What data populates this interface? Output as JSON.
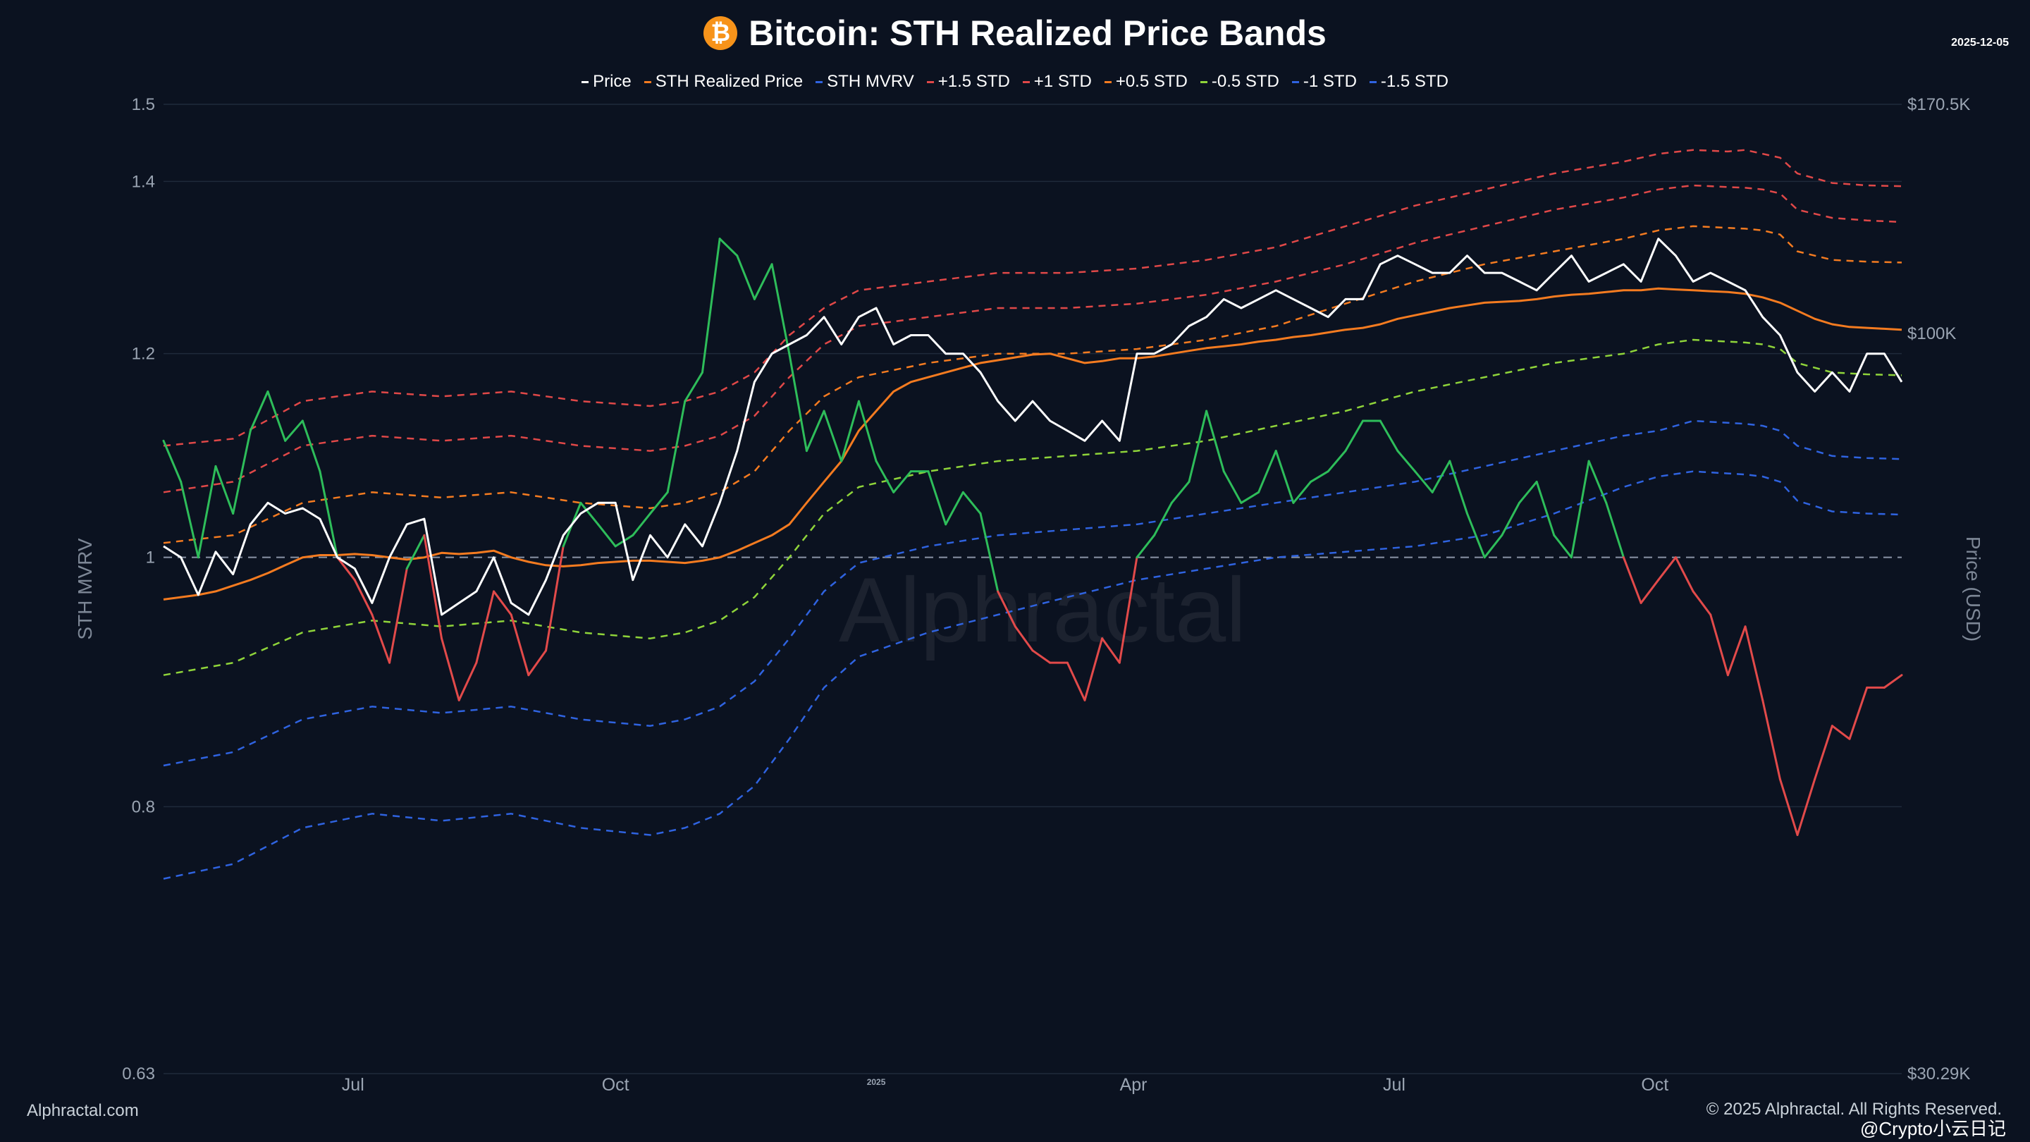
{
  "title": "Bitcoin: STH Realized Price Bands",
  "date_label": "2025-12-05",
  "brand": "Alphractal.com",
  "watermark_text": "Alphractal",
  "copyright": "© 2025 Alphractal. All Rights Reserved.",
  "social_watermark": "@Crypto小云日记",
  "colors": {
    "background": "#0b1220",
    "price": "#ffffff",
    "sth_realized": "#f47b20",
    "mvrv_above": "#2ebd5a",
    "mvrv_below": "#e24a4a",
    "plus15": "#e04848",
    "plus1": "#e04848",
    "plus05": "#f47b20",
    "minus05": "#8fd43a",
    "minus1": "#2f63e0",
    "minus15": "#2f63e0"
  },
  "chart_data": {
    "type": "line",
    "title": "Bitcoin: STH Realized Price Bands",
    "x_axis_ticks": [
      {
        "label": "Jul",
        "t": 0.109
      },
      {
        "label": "Oct",
        "t": 0.26
      },
      {
        "label": "2025",
        "t": 0.41
      },
      {
        "label": "Apr",
        "t": 0.558
      },
      {
        "label": "Jul",
        "t": 0.708
      },
      {
        "label": "Oct",
        "t": 0.858
      }
    ],
    "y_left": {
      "label": "STH MVRV",
      "scale": "log",
      "range": [
        0.63,
        1.5
      ],
      "ticks": [
        "1.5",
        "1.4",
        "1.2",
        "1",
        "0.8",
        "0.63"
      ]
    },
    "y_right": {
      "label": "Price (USD)",
      "ticks": [
        {
          "label": "$170.5K",
          "mvrv": 1.5
        },
        {
          "label": "$100K",
          "mvrv": 1.222
        },
        {
          "label": "$30.29K",
          "mvrv": 0.63
        }
      ]
    },
    "baseline_mvrv": 1.0,
    "legend": [
      "Price",
      "STH Realized Price",
      "STH MVRV",
      "+1.5 STD",
      "+1 STD",
      "+0.5 STD",
      "-0.5 STD",
      "-1 STD",
      "-1.5 STD"
    ],
    "series": [
      {
        "name": "Price",
        "t": [
          0,
          0.01,
          0.02,
          0.03,
          0.04,
          0.05,
          0.06,
          0.07,
          0.08,
          0.09,
          0.1,
          0.11,
          0.12,
          0.13,
          0.14,
          0.15,
          0.16,
          0.17,
          0.18,
          0.19,
          0.2,
          0.21,
          0.22,
          0.23,
          0.24,
          0.25,
          0.26,
          0.27,
          0.28,
          0.29,
          0.3,
          0.31,
          0.32,
          0.33,
          0.34,
          0.35,
          0.36,
          0.37,
          0.38,
          0.39,
          0.4,
          0.41,
          0.42,
          0.43,
          0.44,
          0.45,
          0.46,
          0.47,
          0.48,
          0.49,
          0.5,
          0.51,
          0.52,
          0.53,
          0.54,
          0.55,
          0.56,
          0.57,
          0.58,
          0.59,
          0.6,
          0.61,
          0.62,
          0.63,
          0.64,
          0.65,
          0.66,
          0.67,
          0.68,
          0.69,
          0.7,
          0.71,
          0.72,
          0.73,
          0.74,
          0.75,
          0.76,
          0.77,
          0.78,
          0.79,
          0.8,
          0.81,
          0.82,
          0.83,
          0.84,
          0.85,
          0.86,
          0.87,
          0.88,
          0.89,
          0.9,
          0.91,
          0.92,
          0.93,
          0.94,
          0.95,
          0.96,
          0.97,
          0.98,
          0.99,
          1.0
        ],
        "mvrv": [
          1.01,
          1.0,
          0.967,
          1.005,
          0.985,
          1.03,
          1.05,
          1.04,
          1.045,
          1.035,
          1.0,
          0.99,
          0.96,
          1.0,
          1.03,
          1.035,
          0.95,
          0.96,
          0.97,
          1.0,
          0.96,
          0.95,
          0.98,
          1.02,
          1.04,
          1.05,
          1.05,
          0.98,
          1.02,
          1.0,
          1.03,
          1.01,
          1.05,
          1.1,
          1.17,
          1.2,
          1.21,
          1.22,
          1.24,
          1.21,
          1.24,
          1.25,
          1.21,
          1.22,
          1.22,
          1.2,
          1.2,
          1.18,
          1.15,
          1.13,
          1.15,
          1.13,
          1.12,
          1.11,
          1.13,
          1.11,
          1.2,
          1.2,
          1.21,
          1.23,
          1.24,
          1.26,
          1.25,
          1.26,
          1.27,
          1.26,
          1.25,
          1.24,
          1.26,
          1.26,
          1.3,
          1.31,
          1.3,
          1.29,
          1.29,
          1.31,
          1.29,
          1.29,
          1.28,
          1.27,
          1.29,
          1.31,
          1.28,
          1.29,
          1.3,
          1.28,
          1.33,
          1.31,
          1.28,
          1.29,
          1.28,
          1.27,
          1.24,
          1.22,
          1.18,
          1.16,
          1.18,
          1.16,
          1.2,
          1.2,
          1.17
        ]
      },
      {
        "name": "STH Realized Price",
        "t": [
          0,
          0.01,
          0.02,
          0.03,
          0.04,
          0.05,
          0.06,
          0.07,
          0.08,
          0.09,
          0.1,
          0.11,
          0.12,
          0.13,
          0.14,
          0.15,
          0.16,
          0.17,
          0.18,
          0.19,
          0.2,
          0.21,
          0.22,
          0.23,
          0.24,
          0.25,
          0.26,
          0.27,
          0.28,
          0.29,
          0.3,
          0.31,
          0.32,
          0.33,
          0.34,
          0.35,
          0.36,
          0.37,
          0.38,
          0.39,
          0.4,
          0.41,
          0.42,
          0.43,
          0.44,
          0.45,
          0.46,
          0.47,
          0.48,
          0.49,
          0.5,
          0.51,
          0.52,
          0.53,
          0.54,
          0.55,
          0.56,
          0.57,
          0.58,
          0.59,
          0.6,
          0.61,
          0.62,
          0.63,
          0.64,
          0.65,
          0.66,
          0.67,
          0.68,
          0.69,
          0.7,
          0.71,
          0.72,
          0.73,
          0.74,
          0.75,
          0.76,
          0.77,
          0.78,
          0.79,
          0.8,
          0.81,
          0.82,
          0.83,
          0.84,
          0.85,
          0.86,
          0.87,
          0.88,
          0.89,
          0.9,
          0.91,
          0.92,
          0.93,
          0.94,
          0.95,
          0.96,
          0.97,
          0.98,
          0.99,
          1.0
        ],
        "mvrv": [
          0.963,
          0.965,
          0.967,
          0.97,
          0.975,
          0.98,
          0.986,
          0.993,
          1.0,
          1.002,
          1.002,
          1.003,
          1.002,
          1.0,
          0.998,
          1.0,
          1.004,
          1.003,
          1.004,
          1.006,
          1.0,
          0.996,
          0.993,
          0.992,
          0.993,
          0.995,
          0.996,
          0.997,
          0.997,
          0.996,
          0.995,
          0.997,
          1.0,
          1.006,
          1.013,
          1.02,
          1.03,
          1.05,
          1.07,
          1.09,
          1.12,
          1.14,
          1.16,
          1.17,
          1.175,
          1.18,
          1.185,
          1.19,
          1.193,
          1.196,
          1.199,
          1.2,
          1.195,
          1.19,
          1.192,
          1.195,
          1.195,
          1.197,
          1.2,
          1.203,
          1.206,
          1.208,
          1.21,
          1.213,
          1.215,
          1.218,
          1.22,
          1.223,
          1.226,
          1.228,
          1.232,
          1.238,
          1.242,
          1.246,
          1.25,
          1.253,
          1.256,
          1.257,
          1.258,
          1.26,
          1.263,
          1.265,
          1.266,
          1.268,
          1.27,
          1.27,
          1.272,
          1.271,
          1.27,
          1.269,
          1.268,
          1.266,
          1.262,
          1.256,
          1.247,
          1.238,
          1.232,
          1.229,
          1.228,
          1.227,
          1.226
        ]
      },
      {
        "name": "STH MVRV",
        "t": [
          0,
          0.01,
          0.02,
          0.03,
          0.04,
          0.05,
          0.06,
          0.07,
          0.08,
          0.09,
          0.1,
          0.11,
          0.12,
          0.13,
          0.14,
          0.15,
          0.16,
          0.17,
          0.18,
          0.19,
          0.2,
          0.21,
          0.22,
          0.23,
          0.24,
          0.25,
          0.26,
          0.27,
          0.28,
          0.29,
          0.3,
          0.31,
          0.32,
          0.33,
          0.34,
          0.35,
          0.36,
          0.37,
          0.38,
          0.39,
          0.4,
          0.41,
          0.42,
          0.43,
          0.44,
          0.45,
          0.46,
          0.47,
          0.48,
          0.49,
          0.5,
          0.51,
          0.52,
          0.53,
          0.54,
          0.55,
          0.56,
          0.57,
          0.58,
          0.59,
          0.6,
          0.61,
          0.62,
          0.63,
          0.64,
          0.65,
          0.66,
          0.67,
          0.68,
          0.69,
          0.7,
          0.71,
          0.72,
          0.73,
          0.74,
          0.75,
          0.76,
          0.77,
          0.78,
          0.79,
          0.8,
          0.81,
          0.82,
          0.83,
          0.84,
          0.85,
          0.86,
          0.87,
          0.88,
          0.89,
          0.9,
          0.91,
          0.92,
          0.93,
          0.94,
          0.95,
          0.96,
          0.97,
          0.98,
          0.99,
          1.0
        ],
        "mvrv": [
          1.11,
          1.07,
          1.0,
          1.085,
          1.04,
          1.12,
          1.16,
          1.11,
          1.13,
          1.08,
          1.0,
          0.98,
          0.95,
          0.91,
          0.99,
          1.02,
          0.93,
          0.88,
          0.91,
          0.97,
          0.95,
          0.9,
          0.92,
          1.01,
          1.05,
          1.03,
          1.01,
          1.02,
          1.04,
          1.06,
          1.15,
          1.18,
          1.33,
          1.31,
          1.26,
          1.3,
          1.2,
          1.1,
          1.14,
          1.09,
          1.15,
          1.09,
          1.06,
          1.08,
          1.08,
          1.03,
          1.06,
          1.04,
          0.97,
          0.94,
          0.92,
          0.91,
          0.91,
          0.88,
          0.93,
          0.91,
          1.0,
          1.02,
          1.05,
          1.07,
          1.14,
          1.08,
          1.05,
          1.06,
          1.1,
          1.05,
          1.07,
          1.08,
          1.1,
          1.13,
          1.13,
          1.1,
          1.08,
          1.06,
          1.09,
          1.04,
          1.0,
          1.02,
          1.05,
          1.07,
          1.02,
          1.0,
          1.09,
          1.05,
          1.0,
          0.96,
          0.98,
          1.0,
          0.97,
          0.95,
          0.9,
          0.94,
          0.88,
          0.82,
          0.78,
          0.82,
          0.86,
          0.85,
          0.89,
          0.89,
          0.9
        ]
      },
      {
        "name": "+1.5 STD",
        "t": [
          0,
          0.04,
          0.08,
          0.12,
          0.16,
          0.2,
          0.24,
          0.28,
          0.3,
          0.32,
          0.34,
          0.36,
          0.38,
          0.4,
          0.44,
          0.48,
          0.52,
          0.56,
          0.6,
          0.64,
          0.68,
          0.72,
          0.76,
          0.8,
          0.84,
          0.86,
          0.88,
          0.9,
          0.91,
          0.92,
          0.93,
          0.94,
          0.96,
          0.98,
          1.0
        ],
        "mvrv": [
          1.105,
          1.112,
          1.15,
          1.16,
          1.155,
          1.16,
          1.15,
          1.145,
          1.15,
          1.16,
          1.18,
          1.22,
          1.25,
          1.27,
          1.28,
          1.29,
          1.29,
          1.295,
          1.305,
          1.32,
          1.345,
          1.37,
          1.39,
          1.41,
          1.425,
          1.435,
          1.44,
          1.438,
          1.44,
          1.435,
          1.43,
          1.41,
          1.398,
          1.395,
          1.394
        ]
      },
      {
        "name": "+1 STD",
        "t": [
          0,
          0.04,
          0.08,
          0.12,
          0.16,
          0.2,
          0.24,
          0.28,
          0.3,
          0.32,
          0.34,
          0.36,
          0.38,
          0.4,
          0.44,
          0.48,
          0.52,
          0.56,
          0.6,
          0.64,
          0.68,
          0.72,
          0.76,
          0.8,
          0.84,
          0.86,
          0.88,
          0.9,
          0.91,
          0.92,
          0.93,
          0.94,
          0.96,
          0.98,
          1.0
        ],
        "mvrv": [
          1.06,
          1.07,
          1.105,
          1.115,
          1.11,
          1.115,
          1.105,
          1.1,
          1.105,
          1.115,
          1.135,
          1.175,
          1.21,
          1.23,
          1.24,
          1.25,
          1.25,
          1.255,
          1.265,
          1.28,
          1.3,
          1.325,
          1.345,
          1.365,
          1.38,
          1.39,
          1.395,
          1.393,
          1.392,
          1.39,
          1.385,
          1.365,
          1.355,
          1.352,
          1.35
        ]
      },
      {
        "name": "+0.5 STD",
        "t": [
          0,
          0.04,
          0.08,
          0.12,
          0.16,
          0.2,
          0.24,
          0.28,
          0.3,
          0.32,
          0.34,
          0.36,
          0.38,
          0.4,
          0.44,
          0.48,
          0.52,
          0.56,
          0.6,
          0.64,
          0.68,
          0.72,
          0.76,
          0.8,
          0.84,
          0.86,
          0.88,
          0.9,
          0.91,
          0.92,
          0.93,
          0.94,
          0.96,
          0.98,
          1.0
        ],
        "mvrv": [
          1.013,
          1.02,
          1.05,
          1.06,
          1.055,
          1.06,
          1.05,
          1.045,
          1.05,
          1.06,
          1.08,
          1.12,
          1.155,
          1.175,
          1.19,
          1.2,
          1.2,
          1.205,
          1.215,
          1.23,
          1.255,
          1.28,
          1.3,
          1.315,
          1.33,
          1.34,
          1.345,
          1.343,
          1.342,
          1.34,
          1.335,
          1.315,
          1.305,
          1.303,
          1.302
        ]
      },
      {
        "name": "-0.5 STD",
        "t": [
          0,
          0.04,
          0.08,
          0.12,
          0.16,
          0.2,
          0.24,
          0.28,
          0.3,
          0.32,
          0.34,
          0.36,
          0.38,
          0.4,
          0.44,
          0.48,
          0.52,
          0.56,
          0.6,
          0.64,
          0.68,
          0.72,
          0.76,
          0.8,
          0.84,
          0.86,
          0.88,
          0.9,
          0.91,
          0.92,
          0.93,
          0.94,
          0.96,
          0.98,
          1.0
        ],
        "mvrv": [
          0.9,
          0.91,
          0.935,
          0.945,
          0.94,
          0.945,
          0.935,
          0.93,
          0.935,
          0.945,
          0.965,
          1.0,
          1.04,
          1.065,
          1.08,
          1.09,
          1.095,
          1.1,
          1.11,
          1.125,
          1.14,
          1.16,
          1.175,
          1.19,
          1.2,
          1.21,
          1.215,
          1.213,
          1.212,
          1.21,
          1.205,
          1.19,
          1.18,
          1.178,
          1.177
        ]
      },
      {
        "name": "-1 STD",
        "t": [
          0,
          0.04,
          0.08,
          0.12,
          0.16,
          0.2,
          0.24,
          0.28,
          0.3,
          0.32,
          0.34,
          0.36,
          0.38,
          0.4,
          0.44,
          0.48,
          0.52,
          0.56,
          0.6,
          0.64,
          0.68,
          0.72,
          0.76,
          0.8,
          0.84,
          0.86,
          0.88,
          0.9,
          0.91,
          0.92,
          0.93,
          0.94,
          0.96,
          0.98,
          1.0
        ],
        "mvrv": [
          0.83,
          0.84,
          0.865,
          0.875,
          0.87,
          0.875,
          0.865,
          0.86,
          0.865,
          0.875,
          0.895,
          0.93,
          0.97,
          0.995,
          1.01,
          1.02,
          1.025,
          1.03,
          1.04,
          1.05,
          1.06,
          1.07,
          1.085,
          1.1,
          1.115,
          1.12,
          1.13,
          1.128,
          1.127,
          1.125,
          1.12,
          1.105,
          1.095,
          1.093,
          1.092
        ]
      },
      {
        "name": "-1.5 STD",
        "t": [
          0,
          0.04,
          0.08,
          0.12,
          0.16,
          0.2,
          0.24,
          0.28,
          0.3,
          0.32,
          0.34,
          0.36,
          0.38,
          0.4,
          0.44,
          0.48,
          0.52,
          0.56,
          0.6,
          0.64,
          0.68,
          0.72,
          0.76,
          0.8,
          0.84,
          0.86,
          0.88,
          0.9,
          0.91,
          0.92,
          0.93,
          0.94,
          0.96,
          0.98,
          1.0
        ],
        "mvrv": [
          0.75,
          0.76,
          0.785,
          0.795,
          0.79,
          0.795,
          0.785,
          0.78,
          0.785,
          0.795,
          0.815,
          0.85,
          0.89,
          0.915,
          0.935,
          0.95,
          0.965,
          0.98,
          0.99,
          1.0,
          1.005,
          1.01,
          1.02,
          1.04,
          1.065,
          1.075,
          1.08,
          1.078,
          1.077,
          1.075,
          1.07,
          1.052,
          1.042,
          1.04,
          1.039
        ]
      }
    ]
  }
}
